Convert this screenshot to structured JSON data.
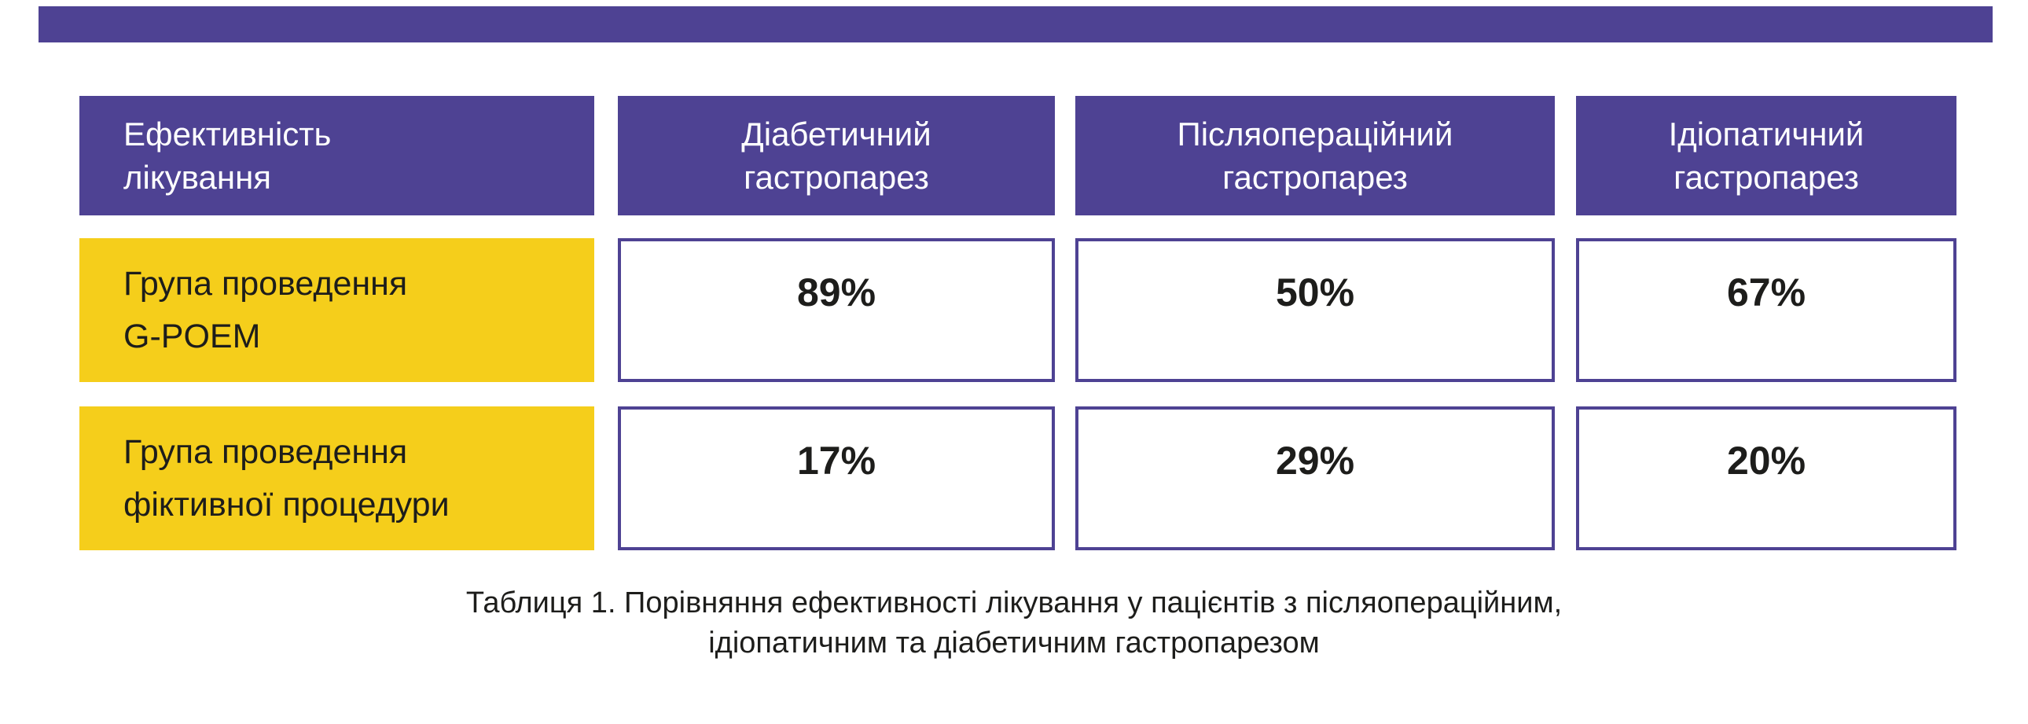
{
  "colors": {
    "purple": "#4E4293",
    "yellow": "#F5CE1B",
    "cell_border": "#4E4293",
    "header_text": "#FFFFFF",
    "body_text": "#1D1D1B",
    "background": "#FFFFFF"
  },
  "table": {
    "header": {
      "col1": {
        "line1": "Ефективність",
        "line2": "лікування"
      },
      "col2": {
        "line1": "Діабетичний",
        "line2": "гастропарез"
      },
      "col3": {
        "line1": "Післяопераційний",
        "line2": "гастропарез"
      },
      "col4": {
        "line1": "Ідіопатичний",
        "line2": "гастропарез"
      }
    },
    "rows": [
      {
        "label": {
          "line1": "Група проведення",
          "line2": "G-POEM"
        },
        "values": [
          "89%",
          "50%",
          "67%"
        ]
      },
      {
        "label": {
          "line1": "Група проведення",
          "line2": "фіктивної процедури"
        },
        "values": [
          "17%",
          "29%",
          "20%"
        ]
      }
    ]
  },
  "caption": {
    "line1": "Таблиця 1. Порівняння ефективності лікування у пацієнтів з післяопераційним,",
    "line2": "ідіопатичним та діабетичним гастропарезом"
  },
  "chart_data": {
    "type": "table",
    "title": "Таблиця 1. Порівняння ефективності лікування у пацієнтів з післяопераційним, ідіопатичним та діабетичним гастропарезом",
    "row_header": "Ефективність лікування",
    "columns": [
      "Діабетичний гастропарез",
      "Післяопераційний гастропарез",
      "Ідіопатичний гастропарез"
    ],
    "rows": [
      {
        "label": "Група проведення G-POEM",
        "values_percent": [
          89,
          50,
          67
        ]
      },
      {
        "label": "Група проведення фіктивної процедури",
        "values_percent": [
          17,
          29,
          20
        ]
      }
    ]
  }
}
